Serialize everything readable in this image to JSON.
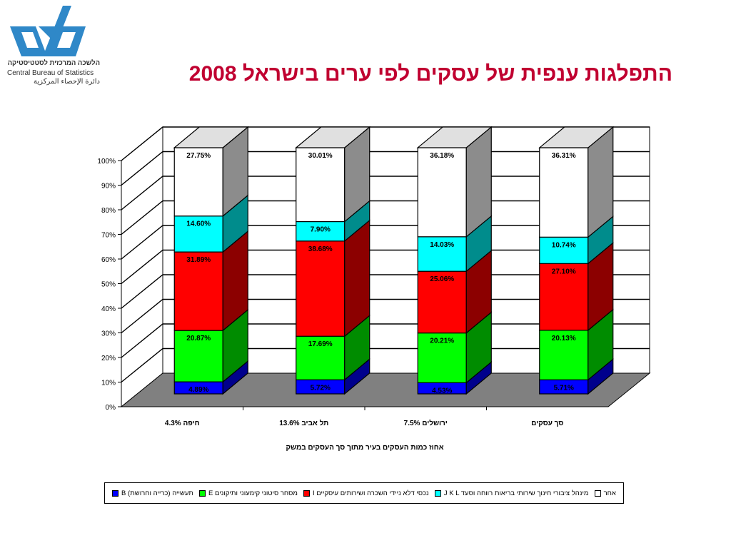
{
  "slide": {
    "title": "התפלגות ענפית של עסקים לפי ערים בישראל 2008",
    "logo": {
      "line_he": "הלשכה המרכזית לסטטיסטיקה",
      "line_en": "Central Bureau of Statistics",
      "line_ar": "دائرة الإحصاء المركزية"
    }
  },
  "colors": {
    "title": "#c00030",
    "logo_blue": "#2f88c8",
    "floor": "#808080",
    "wall": "#ffffff",
    "series": [
      "#0000ff",
      "#00ff00",
      "#ff0000",
      "#00ffff",
      "#ffffff"
    ]
  },
  "chart_data": {
    "type": "bar",
    "stacked": true,
    "style": "3d-stacked-100-percent",
    "categories": [
      "חיפה 4.3%",
      "תל אביב 13.6%",
      "ירושלים 7.5%",
      "סך עסקים"
    ],
    "xlabel": "אחוז כמות העסקים בעיר מתוך סך העסקים במשק",
    "ylabel": "",
    "ylim": [
      0,
      100
    ],
    "yticks": [
      "0%",
      "10%",
      "20%",
      "30%",
      "40%",
      "50%",
      "60%",
      "70%",
      "80%",
      "90%",
      "100%"
    ],
    "grid": true,
    "legend_position": "bottom",
    "series": [
      {
        "name": "B תעשייה (כרייה וחרושת)",
        "values": [
          4.89,
          5.72,
          4.53,
          5.71
        ],
        "labels": [
          "4.89%",
          "5.72%",
          "4.53%",
          "5.71%"
        ]
      },
      {
        "name": "E מסחר סיטוני קימעוני ותיקונים",
        "values": [
          20.87,
          17.69,
          20.21,
          20.13
        ],
        "labels": [
          "20.87%",
          "17.69%",
          "20.21%",
          "20.13%"
        ]
      },
      {
        "name": "I נכסי דלא ניידי השכרה ושירותים עיסקיים",
        "values": [
          31.89,
          38.68,
          25.06,
          27.1
        ],
        "labels": [
          "31.89%",
          "38.68%",
          "25.06%",
          "27.10%"
        ]
      },
      {
        "name": "J K L מינהל ציבורי חינוך שירותי בריאות רווחה וסעד",
        "values": [
          14.6,
          7.9,
          14.03,
          10.74
        ],
        "labels": [
          "14.60%",
          "7.90%",
          "14.03%",
          "10.74%"
        ]
      },
      {
        "name": "אחר",
        "values": [
          27.75,
          30.01,
          36.18,
          36.31
        ],
        "labels": [
          "27.75%",
          "30.01%",
          "36.18%",
          "36.31%"
        ]
      }
    ]
  }
}
